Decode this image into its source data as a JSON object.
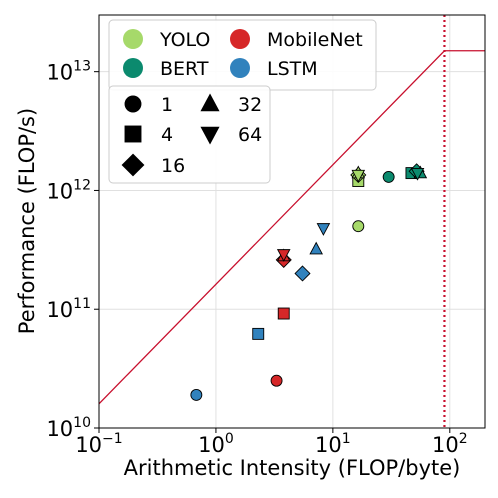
{
  "chart_data": {
    "type": "scatter",
    "title": "",
    "xlabel": "Arithmetic Intensity (FLOP/byte)",
    "ylabel": "Performance (FLOP/s)",
    "xscale": "log",
    "yscale": "log",
    "xlim": [
      0.1,
      200
    ],
    "ylim": [
      10000000000.0,
      30000000000000.0
    ],
    "grid": true,
    "x_ticks": [
      {
        "value": 0.1,
        "base": "10",
        "exp": "−1"
      },
      {
        "value": 1,
        "base": "10",
        "exp": "0"
      },
      {
        "value": 10,
        "base": "10",
        "exp": "1"
      },
      {
        "value": 100,
        "base": "10",
        "exp": "2"
      }
    ],
    "y_ticks": [
      {
        "value": 10000000000.0,
        "base": "10",
        "exp": "10"
      },
      {
        "value": 100000000000.0,
        "base": "10",
        "exp": "11"
      },
      {
        "value": 1000000000000.0,
        "base": "10",
        "exp": "12"
      },
      {
        "value": 10000000000000.0,
        "base": "10",
        "exp": "13"
      }
    ],
    "roofline": {
      "color": "#c8102e",
      "peak_compute": 15000000000000.0,
      "ridge_point": 90,
      "bandwidth_line_points": [
        [
          0.1,
          16000000000.0
        ],
        [
          90,
          15000000000000.0
        ],
        [
          200,
          15000000000000.0
        ]
      ]
    },
    "series_legend": [
      {
        "name": "YOLO",
        "color": "#a6d96a"
      },
      {
        "name": "MobileNet",
        "color": "#d62728"
      },
      {
        "name": "BERT",
        "color": "#0b8a6e"
      },
      {
        "name": "LSTM",
        "color": "#3182bd"
      }
    ],
    "marker_legend": [
      {
        "label": "1",
        "marker": "circle"
      },
      {
        "label": "32",
        "marker": "triangle-up"
      },
      {
        "label": "4",
        "marker": "square"
      },
      {
        "label": "64",
        "marker": "triangle-down"
      },
      {
        "label": "16",
        "marker": "diamond"
      }
    ],
    "points": [
      {
        "series": "YOLO",
        "marker": "circle",
        "x": 16.5,
        "y": 500000000000.0
      },
      {
        "series": "YOLO",
        "marker": "square",
        "x": 16.5,
        "y": 1200000000000.0
      },
      {
        "series": "YOLO",
        "marker": "diamond",
        "x": 16.5,
        "y": 1350000000000.0
      },
      {
        "series": "YOLO",
        "marker": "triangle-up",
        "x": 16.5,
        "y": 1400000000000.0
      },
      {
        "series": "YOLO",
        "marker": "triangle-down",
        "x": 16.5,
        "y": 1350000000000.0
      },
      {
        "series": "MobileNet",
        "marker": "circle",
        "x": 3.3,
        "y": 25000000000.0
      },
      {
        "series": "MobileNet",
        "marker": "square",
        "x": 3.8,
        "y": 92000000000.0
      },
      {
        "series": "MobileNet",
        "marker": "diamond",
        "x": 3.8,
        "y": 260000000000.0
      },
      {
        "series": "MobileNet",
        "marker": "triangle-up",
        "x": 3.8,
        "y": 280000000000.0
      },
      {
        "series": "MobileNet",
        "marker": "triangle-down",
        "x": 3.8,
        "y": 290000000000.0
      },
      {
        "series": "BERT",
        "marker": "circle",
        "x": 30,
        "y": 1300000000000.0
      },
      {
        "series": "BERT",
        "marker": "square",
        "x": 47,
        "y": 1400000000000.0
      },
      {
        "series": "BERT",
        "marker": "diamond",
        "x": 52,
        "y": 1450000000000.0
      },
      {
        "series": "BERT",
        "marker": "triangle-up",
        "x": 56,
        "y": 1400000000000.0
      },
      {
        "series": "BERT",
        "marker": "triangle-down",
        "x": 53,
        "y": 1400000000000.0
      },
      {
        "series": "LSTM",
        "marker": "circle",
        "x": 0.68,
        "y": 19000000000.0
      },
      {
        "series": "LSTM",
        "marker": "square",
        "x": 2.3,
        "y": 62000000000.0
      },
      {
        "series": "LSTM",
        "marker": "diamond",
        "x": 5.5,
        "y": 200000000000.0
      },
      {
        "series": "LSTM",
        "marker": "triangle-up",
        "x": 7.2,
        "y": 320000000000.0
      },
      {
        "series": "LSTM",
        "marker": "triangle-down",
        "x": 8.3,
        "y": 480000000000.0
      }
    ]
  }
}
